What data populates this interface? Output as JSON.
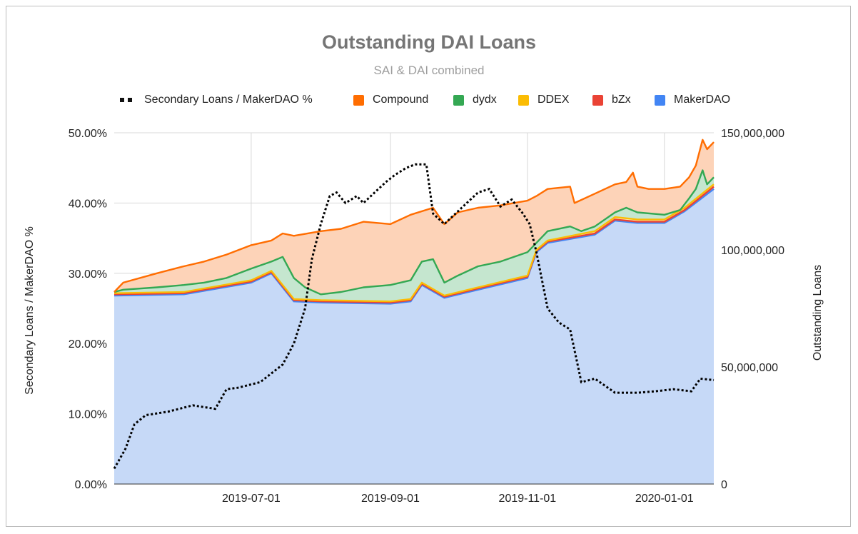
{
  "chart_data": {
    "type": "area",
    "title": "Outstanding DAI Loans",
    "subtitle": "SAI & DAI combined",
    "x_ticks": [
      "2019-07-01",
      "2019-09-01",
      "2019-11-01",
      "2020-01-01"
    ],
    "x_range": [
      "2019-05-01",
      "2020-01-23"
    ],
    "left_axis": {
      "label": "Secondary Loans / MakerDAO %",
      "range": [
        0,
        50
      ],
      "ticks": [
        "0.00%",
        "10.00%",
        "20.00%",
        "30.00%",
        "40.00%",
        "50.00%"
      ]
    },
    "right_axis": {
      "label": "Outstanding Loans",
      "range": [
        0,
        150000000
      ],
      "ticks": [
        "0",
        "50,000,000",
        "100,000,000",
        "150,000,000"
      ]
    },
    "grid": true,
    "legend_position": "top",
    "stacked_series_order": [
      "MakerDAO",
      "bZx",
      "DDEX",
      "dydx",
      "Compound"
    ],
    "series": [
      {
        "name": "Secondary Loans / MakerDAO %",
        "axis": "left",
        "style": "dotted",
        "color": "#000000",
        "x": [
          "2019-05-01",
          "2019-05-06",
          "2019-05-10",
          "2019-05-15",
          "2019-05-25",
          "2019-06-05",
          "2019-06-15",
          "2019-06-20",
          "2019-06-25",
          "2019-07-05",
          "2019-07-15",
          "2019-07-20",
          "2019-07-25",
          "2019-07-28",
          "2019-08-01",
          "2019-08-05",
          "2019-08-08",
          "2019-08-12",
          "2019-08-17",
          "2019-08-20",
          "2019-08-25",
          "2019-08-30",
          "2019-09-03",
          "2019-09-08",
          "2019-09-12",
          "2019-09-17",
          "2019-09-20",
          "2019-09-25",
          "2019-10-05",
          "2019-10-10",
          "2019-10-15",
          "2019-10-20",
          "2019-10-25",
          "2019-10-30",
          "2019-11-02",
          "2019-11-05",
          "2019-11-10",
          "2019-11-15",
          "2019-11-20",
          "2019-11-25",
          "2019-12-01",
          "2019-12-10",
          "2019-12-20",
          "2019-12-28",
          "2020-01-05",
          "2020-01-13",
          "2020-01-17",
          "2020-01-23"
        ],
        "values": [
          2.2,
          5,
          8.5,
          9.8,
          10.3,
          11.2,
          10.7,
          13.5,
          13.7,
          14.5,
          17,
          20,
          25,
          32,
          37,
          41,
          41.5,
          40,
          41,
          40,
          41.5,
          43,
          44,
          45,
          45.5,
          45.5,
          38.5,
          37,
          40,
          41.5,
          42,
          39.5,
          40.5,
          38.5,
          37,
          33,
          25,
          23,
          22,
          14.5,
          15,
          13,
          13,
          13.2,
          13.5,
          13.2,
          15,
          14.8
        ]
      },
      {
        "name": "Compound",
        "axis": "right",
        "color": "#ff6d01",
        "fill": "#fdd3b8",
        "x": [
          "2019-05-01",
          "2019-05-05",
          "2019-05-20",
          "2019-06-01",
          "2019-06-10",
          "2019-06-20",
          "2019-07-01",
          "2019-07-10",
          "2019-07-15",
          "2019-07-20",
          "2019-08-01",
          "2019-08-10",
          "2019-08-20",
          "2019-09-01",
          "2019-09-10",
          "2019-09-20",
          "2019-09-25",
          "2019-10-01",
          "2019-10-10",
          "2019-10-20",
          "2019-11-01",
          "2019-11-05",
          "2019-11-10",
          "2019-11-20",
          "2019-11-22",
          "2019-12-01",
          "2019-12-10",
          "2019-12-15",
          "2019-12-18",
          "2019-12-20",
          "2019-12-25",
          "2020-01-01",
          "2020-01-08",
          "2020-01-12",
          "2020-01-15",
          "2020-01-18",
          "2020-01-20",
          "2020-01-23"
        ],
        "values": [
          82,
          86,
          90,
          93,
          95,
          98,
          102,
          104,
          107,
          106,
          108,
          109,
          112,
          111,
          115,
          118,
          111,
          116,
          118,
          119,
          121,
          123,
          126,
          127,
          120,
          124,
          128,
          129,
          133,
          127,
          126,
          126,
          127,
          131,
          136,
          147,
          143,
          146
        ]
      },
      {
        "name": "dydx",
        "axis": "right",
        "color": "#34a853",
        "fill": "#c5e6cf",
        "x": [
          "2019-05-01",
          "2019-05-05",
          "2019-05-20",
          "2019-06-01",
          "2019-06-10",
          "2019-06-20",
          "2019-07-01",
          "2019-07-10",
          "2019-07-15",
          "2019-07-20",
          "2019-07-25",
          "2019-08-01",
          "2019-08-10",
          "2019-08-20",
          "2019-09-01",
          "2019-09-10",
          "2019-09-15",
          "2019-09-20",
          "2019-09-25",
          "2019-10-01",
          "2019-10-10",
          "2019-10-20",
          "2019-11-01",
          "2019-11-05",
          "2019-11-10",
          "2019-11-20",
          "2019-11-25",
          "2019-12-01",
          "2019-12-10",
          "2019-12-15",
          "2019-12-20",
          "2020-01-01",
          "2020-01-08",
          "2020-01-12",
          "2020-01-15",
          "2020-01-18",
          "2020-01-20",
          "2020-01-23"
        ],
        "values": [
          82,
          83,
          84,
          85,
          86,
          88,
          92,
          95,
          97,
          88,
          84,
          81,
          82,
          84,
          85,
          87,
          95,
          96,
          86,
          89,
          93,
          95,
          99,
          103,
          108,
          110,
          108,
          110,
          116,
          118,
          116,
          115,
          117,
          122,
          126,
          134,
          128,
          131
        ]
      },
      {
        "name": "DDEX",
        "axis": "right",
        "color": "#fbbc04",
        "fill": "#fde7a8",
        "x": [
          "2019-05-01",
          "2019-06-01",
          "2019-07-01",
          "2019-07-10",
          "2019-07-20",
          "2019-08-01",
          "2019-09-01",
          "2019-09-10",
          "2019-09-15",
          "2019-09-25",
          "2019-10-10",
          "2019-11-01",
          "2019-11-05",
          "2019-11-10",
          "2019-12-01",
          "2019-12-10",
          "2019-12-20",
          "2020-01-01",
          "2020-01-10",
          "2020-01-23"
        ],
        "values": [
          81.5,
          82,
          87,
          91,
          79,
          78.5,
          78,
          79,
          86,
          80.5,
          84,
          89,
          100,
          104,
          108,
          114,
          113,
          113,
          118,
          128
        ]
      },
      {
        "name": "bZx",
        "axis": "right",
        "color": "#ea4335",
        "fill": "#f6c7c2",
        "x": [
          "2019-05-01",
          "2019-06-01",
          "2019-07-01",
          "2019-07-10",
          "2019-07-20",
          "2019-08-01",
          "2019-09-01",
          "2019-09-10",
          "2019-09-15",
          "2019-09-25",
          "2019-10-10",
          "2019-11-01",
          "2019-11-05",
          "2019-11-10",
          "2019-12-01",
          "2019-12-10",
          "2019-12-20",
          "2020-01-01",
          "2020-01-10",
          "2020-01-23"
        ],
        "values": [
          81,
          81.5,
          86.5,
          90.5,
          78.5,
          78,
          77.5,
          78.5,
          85.5,
          80,
          83.5,
          88.5,
          99.5,
          103.5,
          107,
          113,
          112,
          112,
          117,
          127
        ]
      },
      {
        "name": "MakerDAO",
        "axis": "right",
        "color": "#4285f4",
        "fill": "#c6d9f7",
        "x": [
          "2019-05-01",
          "2019-06-01",
          "2019-07-01",
          "2019-07-10",
          "2019-07-20",
          "2019-08-01",
          "2019-09-01",
          "2019-09-10",
          "2019-09-15",
          "2019-09-25",
          "2019-10-10",
          "2019-11-01",
          "2019-11-05",
          "2019-11-10",
          "2019-12-01",
          "2019-12-10",
          "2019-12-20",
          "2020-01-01",
          "2020-01-10",
          "2020-01-23"
        ],
        "values": [
          80.5,
          81,
          86,
          90,
          78,
          77.5,
          77,
          78,
          85,
          79.5,
          83,
          88,
          99,
          103,
          106.5,
          112.5,
          111.5,
          111.5,
          116.5,
          126
        ]
      }
    ]
  }
}
